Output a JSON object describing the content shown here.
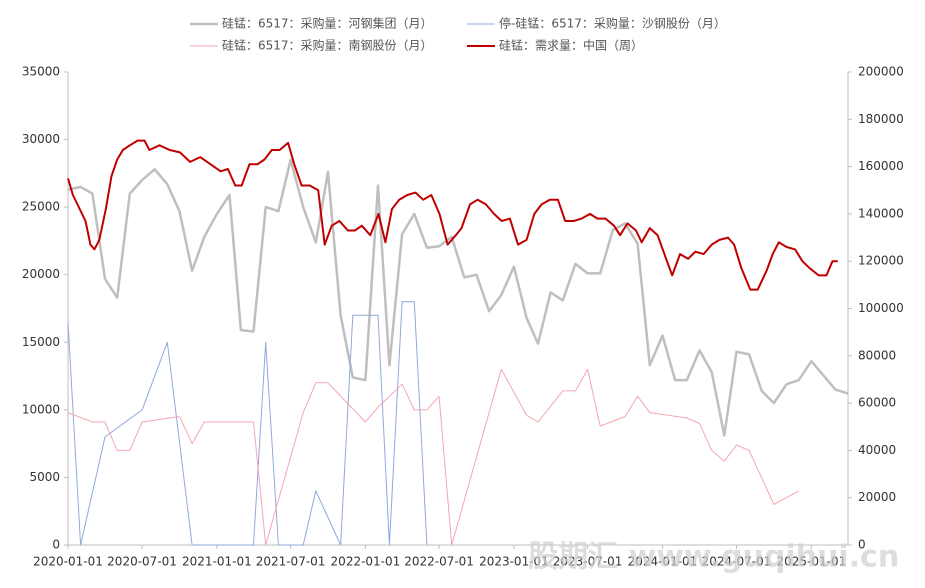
{
  "chart_data": {
    "type": "line",
    "watermark": "股期汇 www.guqihui.cn",
    "xlim": [
      "2020-01-01",
      "2025-04-01"
    ],
    "xticks": [
      "2020-01-01",
      "2020-07-01",
      "2021-01-01",
      "2021-07-01",
      "2022-01-01",
      "2022-07-01",
      "2023-01-01",
      "2023-07-01",
      "2024-01-01",
      "2024-07-01",
      "2025-01-01"
    ],
    "ylim": [
      0,
      35000
    ],
    "yticks": [
      0,
      5000,
      10000,
      15000,
      20000,
      25000,
      30000,
      35000
    ],
    "y2lim": [
      0,
      200000
    ],
    "y2ticks": [
      0,
      20000,
      40000,
      60000,
      80000,
      100000,
      120000,
      140000,
      160000,
      180000,
      200000
    ],
    "series": [
      {
        "name": "硅锰：6517：采购量：河钢集团（月）",
        "color": "#bfbfbf",
        "width": 2.5,
        "x": [
          "2020-01-01",
          "2020-02-01",
          "2020-03-01",
          "2020-04-01",
          "2020-05-01",
          "2020-06-01",
          "2020-07-01",
          "2020-08-01",
          "2020-09-01",
          "2020-10-01",
          "2020-11-01",
          "2020-12-01",
          "2021-01-01",
          "2021-02-01",
          "2021-03-01",
          "2021-04-01",
          "2021-05-01",
          "2021-06-01",
          "2021-07-01",
          "2021-08-01",
          "2021-09-01",
          "2021-10-01",
          "2021-11-01",
          "2021-12-01",
          "2022-01-01",
          "2022-02-01",
          "2022-03-01",
          "2022-04-01",
          "2022-05-01",
          "2022-06-01",
          "2022-07-01",
          "2022-08-01",
          "2022-09-01",
          "2022-10-01",
          "2022-11-01",
          "2022-12-01",
          "2023-01-01",
          "2023-02-01",
          "2023-03-01",
          "2023-04-01",
          "2023-05-01",
          "2023-06-01",
          "2023-07-01",
          "2023-08-01",
          "2023-09-01",
          "2023-10-01",
          "2023-11-01",
          "2023-12-01",
          "2024-01-01",
          "2024-02-01",
          "2024-03-01",
          "2024-04-01",
          "2024-05-01",
          "2024-06-01",
          "2024-07-01",
          "2024-08-01",
          "2024-09-01",
          "2024-10-01",
          "2024-11-01",
          "2024-12-01",
          "2025-01-01",
          "2025-02-01",
          "2025-03-01",
          "2025-04-01"
        ],
        "values": [
          26300,
          26500,
          26000,
          19700,
          18300,
          26000,
          27000,
          27800,
          26700,
          24700,
          20300,
          22800,
          24500,
          25900,
          15900,
          15800,
          25000,
          24700,
          28500,
          25000,
          22400,
          27600,
          17000,
          12400,
          12200,
          26600,
          13300,
          23000,
          24500,
          22000,
          22100,
          22800,
          19800,
          20000,
          17300,
          18500,
          20600,
          16800,
          14900,
          18700,
          18100,
          20800,
          20100,
          20100,
          23300,
          23800,
          22300,
          13300,
          15500,
          12200,
          12200,
          14400,
          12800,
          8100,
          14300,
          14100,
          11400,
          10500,
          11900,
          12200,
          13600,
          12500,
          11500,
          11200
        ]
      },
      {
        "name": "停-硅锰：6517：采购量：沙钢股份（月）",
        "color": "#8ea9db",
        "width": 1,
        "x": [
          "2020-01-01",
          "2020-02-01",
          "2020-04-01",
          "2020-07-01",
          "2020-09-01",
          "2020-11-01",
          "2021-04-01",
          "2021-05-01",
          "2021-06-01",
          "2021-08-01",
          "2021-09-01",
          "2021-11-01",
          "2021-12-01",
          "2022-02-01",
          "2022-03-01",
          "2022-04-01",
          "2022-05-01",
          "2022-06-01"
        ],
        "values": [
          16500,
          0,
          8000,
          10000,
          15000,
          0,
          0,
          15000,
          0,
          0,
          4000,
          0,
          17000,
          17000,
          0,
          18000,
          18000,
          0
        ]
      },
      {
        "name": "硅锰：6517：采购量：南钢股份（月）",
        "color": "#f4a6b0",
        "width": 1,
        "x": [
          "2020-01-01",
          "2020-03-01",
          "2020-04-01",
          "2020-05-01",
          "2020-06-01",
          "2020-07-01",
          "2020-10-01",
          "2020-11-01",
          "2020-12-01",
          "2021-04-01",
          "2021-05-01",
          "2021-08-01",
          "2021-09-01",
          "2021-10-01",
          "2022-01-01",
          "2022-02-01",
          "2022-04-01",
          "2022-05-01",
          "2022-06-01",
          "2022-07-01",
          "2022-08-01",
          "2022-12-01",
          "2023-02-01",
          "2023-03-01",
          "2023-05-01",
          "2023-06-01",
          "2023-07-01",
          "2023-08-01",
          "2023-10-01",
          "2023-11-01",
          "2023-12-01",
          "2024-03-01",
          "2024-04-01",
          "2024-05-01",
          "2024-06-01",
          "2024-07-01",
          "2024-08-01",
          "2024-10-01",
          "2024-12-01"
        ],
        "values": [
          9800,
          9100,
          9100,
          7000,
          7000,
          9100,
          9500,
          7500,
          9100,
          9100,
          0,
          9800,
          12000,
          12000,
          9100,
          10200,
          11900,
          10000,
          10000,
          11000,
          0,
          13000,
          9600,
          9100,
          11400,
          11400,
          13000,
          8800,
          9500,
          11000,
          9800,
          9400,
          9000,
          7000,
          6200,
          7400,
          7000,
          3000,
          4000
        ]
      },
      {
        "name": "硅锰：需求量：中国（周）",
        "color": "#c00000",
        "width": 2,
        "axis": "y2",
        "x": [
          "2020-01-01",
          "2020-01-13",
          "2020-02-13",
          "2020-02-25",
          "2020-03-06",
          "2020-03-18",
          "2020-04-03",
          "2020-04-17",
          "2020-05-01",
          "2020-05-15",
          "2020-06-01",
          "2020-06-20",
          "2020-07-07",
          "2020-07-19",
          "2020-08-13",
          "2020-09-07",
          "2020-10-02",
          "2020-10-27",
          "2020-11-21",
          "2020-12-16",
          "2021-01-10",
          "2021-01-28",
          "2021-02-15",
          "2021-03-03",
          "2021-03-22",
          "2021-04-11",
          "2021-04-28",
          "2021-05-16",
          "2021-06-04",
          "2021-06-25",
          "2021-07-10",
          "2021-07-28",
          "2021-08-17",
          "2021-09-07",
          "2021-09-23",
          "2021-10-10",
          "2021-10-29",
          "2021-11-19",
          "2021-12-06",
          "2021-12-23",
          "2022-01-13",
          "2022-02-02",
          "2022-02-19",
          "2022-03-07",
          "2022-03-25",
          "2022-04-14",
          "2022-05-04",
          "2022-05-23",
          "2022-06-12",
          "2022-07-02",
          "2022-07-22",
          "2022-08-11",
          "2022-08-25",
          "2022-09-15",
          "2022-10-04",
          "2022-10-24",
          "2022-11-13",
          "2022-12-02",
          "2022-12-22",
          "2023-01-11",
          "2023-02-01",
          "2023-02-20",
          "2023-03-10",
          "2023-03-30",
          "2023-04-19",
          "2023-05-07",
          "2023-05-28",
          "2023-06-16",
          "2023-07-07",
          "2023-07-25",
          "2023-08-14",
          "2023-09-04",
          "2023-09-19",
          "2023-10-07",
          "2023-10-28",
          "2023-11-11",
          "2023-12-01",
          "2023-12-20",
          "2024-01-10",
          "2024-01-25",
          "2024-02-13",
          "2024-03-04",
          "2024-03-22",
          "2024-04-11",
          "2024-05-01",
          "2024-05-20",
          "2024-06-10",
          "2024-06-25",
          "2024-07-13",
          "2024-08-04",
          "2024-08-22",
          "2024-09-13",
          "2024-09-28",
          "2024-10-13",
          "2024-11-01",
          "2024-11-22",
          "2024-12-10",
          "2024-12-28",
          "2025-01-19",
          "2025-02-07",
          "2025-02-22",
          "2025-03-07"
        ],
        "values": [
          155000,
          148000,
          137000,
          127000,
          125000,
          129000,
          142000,
          156000,
          163000,
          167000,
          169000,
          171000,
          171000,
          167000,
          169000,
          167000,
          166000,
          162000,
          164000,
          161000,
          158000,
          159000,
          152000,
          152000,
          161000,
          161000,
          163000,
          167000,
          167000,
          170000,
          161000,
          152000,
          152000,
          150000,
          127000,
          135000,
          137000,
          133000,
          133000,
          135000,
          131000,
          140000,
          128000,
          142000,
          146000,
          148000,
          149000,
          146000,
          148000,
          140000,
          127000,
          131000,
          134000,
          144000,
          146000,
          144000,
          140000,
          137000,
          138000,
          127000,
          129000,
          140000,
          144000,
          146000,
          146000,
          137000,
          137000,
          138000,
          140000,
          138000,
          138000,
          135000,
          131000,
          136000,
          133000,
          128000,
          134000,
          131000,
          121000,
          114000,
          123000,
          121000,
          124000,
          123000,
          127000,
          129000,
          130000,
          127000,
          117000,
          108000,
          108000,
          116000,
          123000,
          128000,
          126000,
          125000,
          120000,
          117000,
          114000,
          114000,
          120000,
          120000
        ]
      }
    ]
  }
}
